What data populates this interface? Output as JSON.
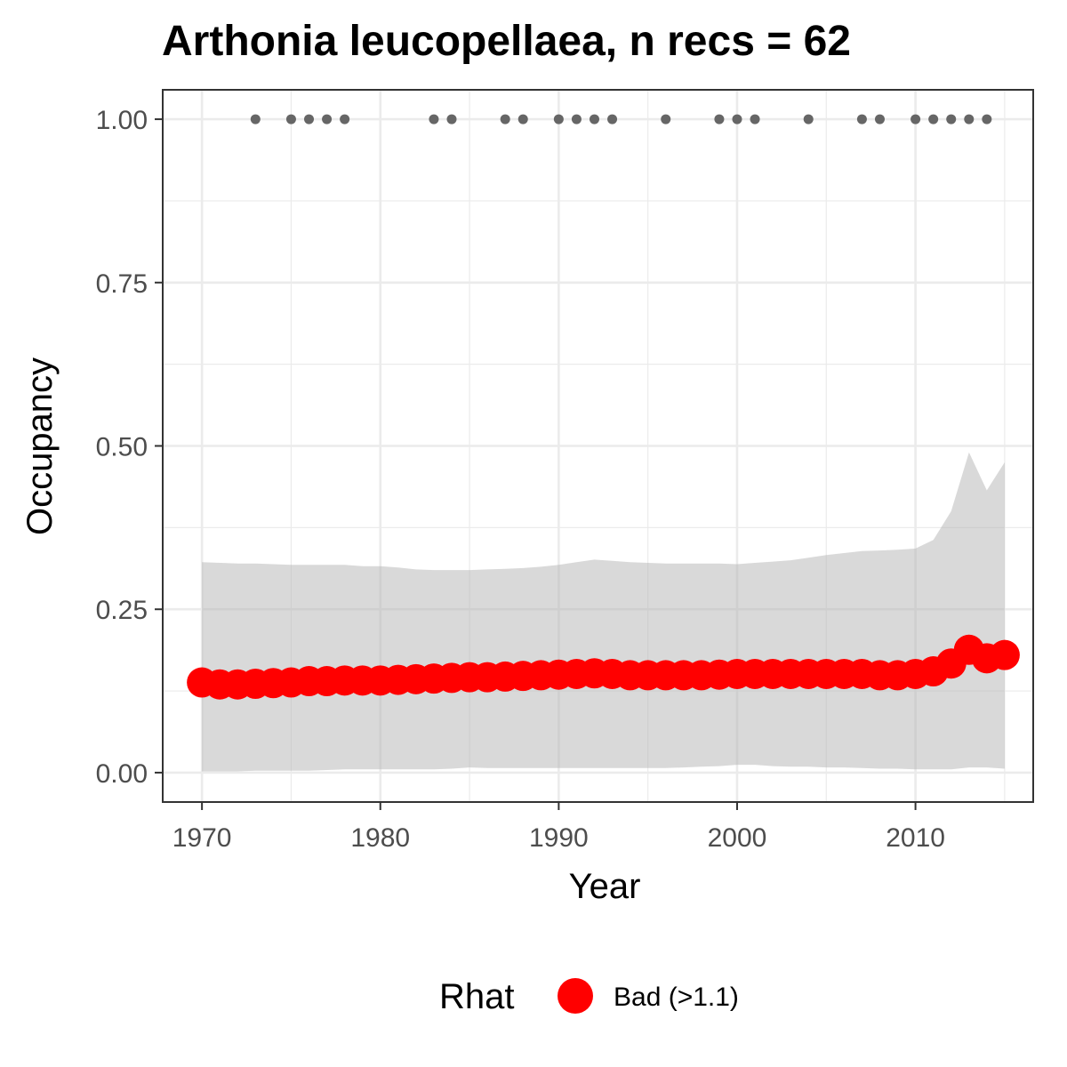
{
  "chart_data": {
    "type": "line",
    "title": "Arthonia leucopellaea, n recs = 62",
    "xlabel": "Year",
    "ylabel": "Occupancy",
    "xlim": [
      1967.8,
      2016.6
    ],
    "ylim": [
      -0.045,
      1.045
    ],
    "xticks": [
      1970,
      1980,
      1990,
      2000,
      2010
    ],
    "yticks": [
      0,
      0.25,
      0.5,
      0.75,
      1
    ],
    "ytick_labels": [
      "0.00",
      "0.25",
      "0.50",
      "0.75",
      "1.00"
    ],
    "grid": true,
    "legend": {
      "title": "Rhat",
      "position": "bottom",
      "items": [
        {
          "label": "Bad (>1.1)",
          "color": "#ff0000"
        }
      ]
    },
    "series": [
      {
        "name": "Bad (>1.1)",
        "x": [
          1970,
          1971,
          1972,
          1973,
          1974,
          1975,
          1976,
          1977,
          1978,
          1979,
          1980,
          1981,
          1982,
          1983,
          1984,
          1985,
          1986,
          1987,
          1988,
          1989,
          1990,
          1991,
          1992,
          1993,
          1994,
          1995,
          1996,
          1997,
          1998,
          1999,
          2000,
          2001,
          2002,
          2003,
          2004,
          2005,
          2006,
          2007,
          2008,
          2009,
          2010,
          2011,
          2012,
          2013,
          2014,
          2015
        ],
        "y": [
          0.138,
          0.135,
          0.135,
          0.136,
          0.137,
          0.138,
          0.14,
          0.14,
          0.141,
          0.141,
          0.141,
          0.142,
          0.143,
          0.144,
          0.145,
          0.146,
          0.146,
          0.147,
          0.148,
          0.149,
          0.15,
          0.151,
          0.152,
          0.151,
          0.149,
          0.149,
          0.149,
          0.149,
          0.149,
          0.15,
          0.151,
          0.151,
          0.151,
          0.151,
          0.151,
          0.151,
          0.151,
          0.151,
          0.149,
          0.149,
          0.151,
          0.155,
          0.167,
          0.188,
          0.175,
          0.18
        ],
        "lower": [
          0.002,
          0.002,
          0.002,
          0.003,
          0.003,
          0.003,
          0.003,
          0.004,
          0.005,
          0.005,
          0.005,
          0.005,
          0.005,
          0.005,
          0.006,
          0.008,
          0.007,
          0.007,
          0.007,
          0.007,
          0.007,
          0.007,
          0.007,
          0.007,
          0.007,
          0.007,
          0.007,
          0.008,
          0.009,
          0.01,
          0.012,
          0.012,
          0.01,
          0.009,
          0.009,
          0.008,
          0.008,
          0.007,
          0.006,
          0.006,
          0.005,
          0.005,
          0.005,
          0.008,
          0.008,
          0.006
        ],
        "upper": [
          0.322,
          0.321,
          0.32,
          0.32,
          0.319,
          0.318,
          0.318,
          0.318,
          0.318,
          0.316,
          0.316,
          0.314,
          0.311,
          0.31,
          0.31,
          0.31,
          0.311,
          0.312,
          0.313,
          0.315,
          0.318,
          0.322,
          0.326,
          0.324,
          0.322,
          0.321,
          0.32,
          0.32,
          0.32,
          0.32,
          0.319,
          0.321,
          0.323,
          0.325,
          0.329,
          0.333,
          0.336,
          0.339,
          0.34,
          0.341,
          0.343,
          0.356,
          0.4,
          0.49,
          0.432,
          0.475
        ],
        "color": "#ff0000"
      },
      {
        "name": "",
        "type": "scatter",
        "x": [
          1973,
          1975,
          1976,
          1977,
          1978,
          1983,
          1984,
          1987,
          1988,
          1990,
          1991,
          1992,
          1993,
          1996,
          1999,
          2000,
          2001,
          2004,
          2007,
          2008,
          2010,
          2011,
          2012,
          2013,
          2014
        ],
        "y": [
          1,
          1,
          1,
          1,
          1,
          1,
          1,
          1,
          1,
          1,
          1,
          1,
          1,
          1,
          1,
          1,
          1,
          1,
          1,
          1,
          1,
          1,
          1,
          1,
          1
        ],
        "color": "#666666"
      }
    ]
  }
}
